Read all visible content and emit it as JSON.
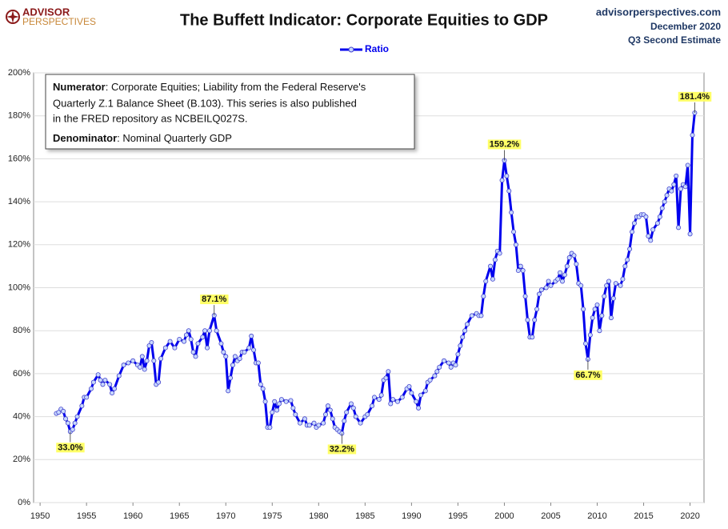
{
  "chart_data": {
    "type": "line",
    "title": "The Buffett Indicator: Corporate Equities to GDP",
    "logo": {
      "line1": "ADVISOR",
      "line2": "PERSPECTIVES"
    },
    "source": [
      "advisorperspectives.com",
      "December 2020",
      "Q3 Second Estimate"
    ],
    "note": {
      "numerator_label": "Numerator",
      "numerator_lines": [
        ": Corporate Equities; Liability from the Federal Reserve's",
        "Quarterly Z.1 Balance Sheet (B.103). This series is also published",
        "in the FRED repository  as NCBEILQ027S."
      ],
      "denominator_label": "Denominator",
      "denominator_text": ": Nominal Quarterly GDP"
    },
    "x": [
      1951.75,
      1952,
      1952.25,
      1952.5,
      1952.75,
      1953,
      1953.25,
      1953.5,
      1953.75,
      1954,
      1954.5,
      1954.75,
      1955,
      1955.5,
      1955.75,
      1956.25,
      1956.5,
      1956.75,
      1957,
      1957.5,
      1957.75,
      1958,
      1958.5,
      1959,
      1959.5,
      1960,
      1960.5,
      1960.75,
      1961,
      1961.25,
      1961.5,
      1961.75,
      1962,
      1962.25,
      1962.5,
      1962.75,
      1963,
      1963.5,
      1964,
      1964.5,
      1965,
      1965.5,
      1965.75,
      1966,
      1966.25,
      1966.5,
      1966.75,
      1967,
      1967.5,
      1967.75,
      1968,
      1968.25,
      1968.75,
      1969,
      1969.5,
      1969.75,
      1970,
      1970.25,
      1970.5,
      1970.75,
      1971,
      1971.25,
      1971.5,
      1971.75,
      1972,
      1972.5,
      1972.75,
      1973,
      1973.25,
      1973.5,
      1973.75,
      1974,
      1974.25,
      1974.5,
      1974.75,
      1975,
      1975.25,
      1975.5,
      1975.75,
      1976,
      1976.5,
      1977,
      1977.25,
      1977.5,
      1978,
      1978.5,
      1978.75,
      1979,
      1979.5,
      1979.75,
      1980,
      1980.5,
      1980.75,
      1981,
      1981.25,
      1981.5,
      1981.75,
      1982,
      1982.25,
      1982.5,
      1982.75,
      1983,
      1983.5,
      1983.75,
      1984,
      1984.5,
      1985,
      1985.25,
      1985.75,
      1986,
      1986.5,
      1986.75,
      1987,
      1987.25,
      1987.5,
      1987.75,
      1988,
      1988.5,
      1989,
      1989.5,
      1989.75,
      1990,
      1990.5,
      1990.75,
      1991,
      1991.5,
      1991.75,
      1992,
      1992.5,
      1992.75,
      1993,
      1993.5,
      1994,
      1994.25,
      1994.5,
      1994.75,
      1995,
      1995.25,
      1995.5,
      1995.75,
      1996,
      1996.5,
      1997,
      1997.25,
      1997.5,
      1997.75,
      1998,
      1998.5,
      1998.75,
      1999,
      1999.25,
      1999.5,
      1999.75,
      2000,
      2000.25,
      2000.5,
      2000.75,
      2001,
      2001.25,
      2001.5,
      2001.75,
      2002,
      2002.25,
      2002.5,
      2002.75,
      2003,
      2003.25,
      2003.5,
      2003.75,
      2004,
      2004.5,
      2004.75,
      2005,
      2005.5,
      2005.75,
      2006,
      2006.25,
      2006.5,
      2006.75,
      2007,
      2007.25,
      2007.5,
      2007.75,
      2008,
      2008.25,
      2008.5,
      2008.75,
      2009,
      2009.25,
      2009.5,
      2009.75,
      2010,
      2010.25,
      2010.5,
      2010.75,
      2011,
      2011.25,
      2011.5,
      2011.75,
      2012,
      2012.5,
      2012.75,
      2013,
      2013.25,
      2013.5,
      2013.75,
      2014,
      2014.25,
      2014.5,
      2014.75,
      2015,
      2015.25,
      2015.5,
      2015.75,
      2016,
      2016.5,
      2016.75,
      2017,
      2017.25,
      2017.5,
      2017.75,
      2018,
      2018.25,
      2018.5,
      2018.75,
      2019,
      2019.25,
      2019.5,
      2019.75,
      2020,
      2020.25,
      2020.5
    ],
    "series": [
      {
        "name": "Ratio",
        "color": "#0000ee",
        "values": [
          41.5,
          42,
          43.5,
          42.5,
          39,
          37,
          33.0,
          34,
          37,
          40,
          45,
          49,
          49,
          53,
          56,
          59.5,
          57,
          55,
          57,
          55,
          51,
          53,
          59,
          64,
          65,
          66,
          64,
          63,
          68,
          62,
          66,
          73,
          74.5,
          66,
          55,
          56,
          67,
          72,
          75,
          72,
          76,
          75,
          78,
          80,
          76,
          70,
          68,
          74,
          77,
          80,
          72,
          80,
          87.1,
          80,
          74,
          70,
          68,
          52,
          58,
          64,
          68,
          66,
          67,
          70,
          70,
          72,
          77.5,
          71,
          65,
          65,
          55,
          53,
          47,
          35,
          35,
          42,
          47,
          43,
          46,
          48,
          47,
          47.5,
          44,
          41,
          37,
          39,
          36,
          36,
          37,
          35,
          36,
          37,
          41,
          45,
          43,
          39,
          35,
          34,
          33,
          32.2,
          38,
          42,
          46,
          44,
          40,
          37,
          40,
          41,
          45,
          49,
          48,
          50,
          57,
          58,
          61,
          46,
          48,
          47,
          49,
          53,
          54,
          51,
          47,
          44,
          50,
          52,
          56,
          57,
          59,
          61,
          63,
          66,
          65,
          63,
          65,
          64,
          69,
          73,
          77,
          80,
          83,
          87,
          88,
          87,
          87,
          96,
          103,
          110,
          104,
          113,
          117,
          116,
          150,
          159.2,
          152,
          145,
          135,
          126,
          120,
          108,
          110,
          108,
          96,
          85,
          77,
          77,
          85,
          90,
          97,
          99,
          100,
          103,
          101,
          103,
          104,
          107,
          103,
          106,
          110,
          114,
          116,
          115,
          111,
          102,
          101,
          90,
          74,
          66.7,
          78,
          86,
          90,
          92,
          80,
          87,
          96,
          101,
          103,
          86,
          95,
          102,
          101,
          104,
          110,
          113,
          118,
          126,
          130,
          133,
          133,
          134,
          134,
          133,
          124,
          122,
          127,
          130,
          133,
          137,
          140,
          143,
          146,
          145,
          148,
          152,
          128,
          146,
          148,
          147,
          157,
          125,
          171,
          181.4
        ]
      }
    ],
    "annotations": [
      {
        "x": 1953.25,
        "value": 33.0,
        "label": "33.0%"
      },
      {
        "x": 1968.75,
        "value": 87.1,
        "label": "87.1%"
      },
      {
        "x": 1982.5,
        "value": 32.2,
        "label": "32.2%"
      },
      {
        "x": 2000,
        "value": 159.2,
        "label": "159.2%"
      },
      {
        "x": 2009,
        "value": 66.7,
        "label": "66.7%"
      },
      {
        "x": 2020.5,
        "value": 181.4,
        "label": "181.4%"
      }
    ],
    "xlim": [
      1949.3,
      2021.5
    ],
    "xticks": [
      1950,
      1955,
      1960,
      1965,
      1970,
      1975,
      1980,
      1985,
      1990,
      1995,
      2000,
      2005,
      2010,
      2015,
      2020
    ],
    "ylim": [
      0,
      200
    ],
    "yticks": [
      {
        "value": 0,
        "label": "0%"
      },
      {
        "value": 20,
        "label": "20%"
      },
      {
        "value": 40,
        "label": "40%"
      },
      {
        "value": 60,
        "label": "60%"
      },
      {
        "value": 80,
        "label": "80%"
      },
      {
        "value": 100,
        "label": "100%"
      },
      {
        "value": 120,
        "label": "120%"
      },
      {
        "value": 140,
        "label": "140%"
      },
      {
        "value": 160,
        "label": "160%"
      },
      {
        "value": 180,
        "label": "180%"
      },
      {
        "value": 200,
        "label": "200%"
      }
    ],
    "grid": true,
    "legend": "top"
  }
}
